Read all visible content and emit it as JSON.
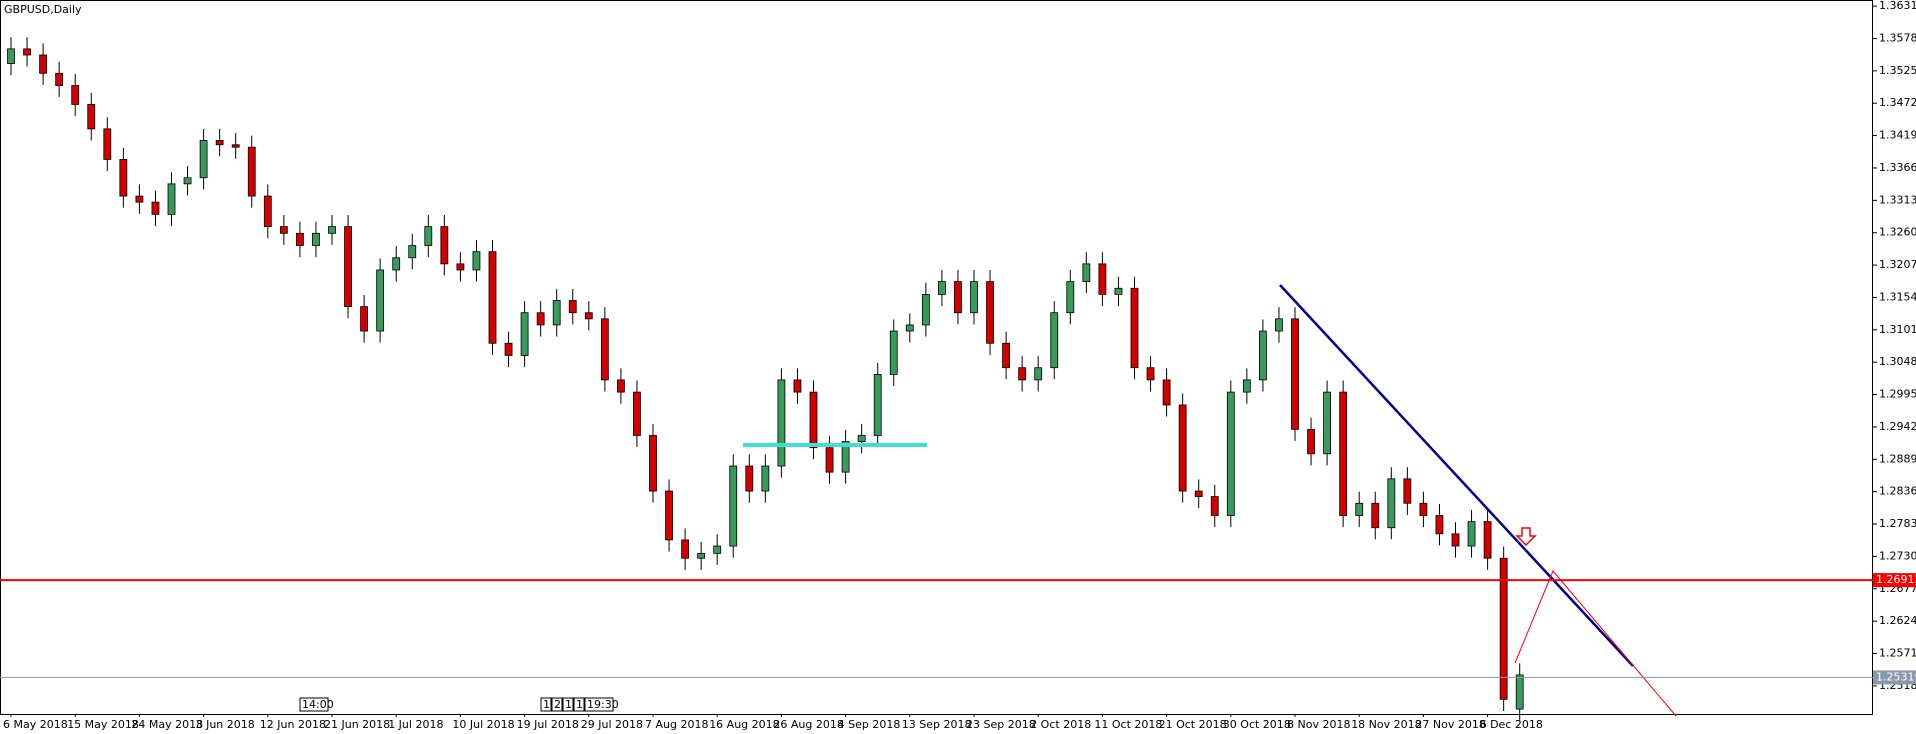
{
  "chart_data": {
    "type": "candlestick",
    "title": "GBPUSD,Daily",
    "categories": [
      "6 May 2018",
      null,
      null,
      null,
      "15 May 2018",
      null,
      null,
      null,
      "24 May 2018",
      null,
      null,
      null,
      "3 Jun 2018",
      null,
      null,
      null,
      "12 Jun 2018",
      null,
      null,
      null,
      "21 Jun 2018",
      null,
      null,
      null,
      "1 Jul 2018",
      null,
      null,
      null,
      "10 Jul 2018",
      null,
      null,
      null,
      "19 Jul 2018",
      null,
      null,
      null,
      "29 Jul 2018",
      null,
      null,
      null,
      "7 Aug 2018",
      null,
      null,
      null,
      "16 Aug 2018",
      null,
      null,
      null,
      "26 Aug 2018",
      null,
      null,
      null,
      "4 Sep 2018",
      null,
      null,
      null,
      "13 Sep 2018",
      null,
      null,
      null,
      "23 Sep 2018",
      null,
      null,
      null,
      "2 Oct 2018",
      null,
      null,
      null,
      "11 Oct 2018",
      null,
      null,
      null,
      "21 Oct 2018",
      null,
      null,
      null,
      "30 Oct 2018",
      null,
      null,
      null,
      "8 Nov 2018",
      null,
      null,
      null,
      "18 Nov 2018",
      null,
      null,
      null,
      "27 Nov 2018",
      null,
      null,
      null,
      "6 Dec 2018",
      null,
      null
    ],
    "open": [
      1.3537,
      1.3561,
      1.3551,
      1.3521,
      1.3501,
      1.347,
      1.343,
      1.338,
      1.332,
      1.331,
      1.329,
      1.334,
      1.335,
      1.3411,
      1.3404,
      1.34,
      1.332,
      1.327,
      1.3259,
      1.3239,
      1.3259,
      1.327,
      1.3139,
      1.3099,
      1.3199,
      1.3219,
      1.3239,
      1.327,
      1.3209,
      1.3199,
      1.3229,
      1.3079,
      1.3059,
      1.3129,
      1.3109,
      1.3149,
      1.3129,
      1.3119,
      1.3019,
      1.2999,
      1.2928,
      1.2837,
      1.2757,
      1.2727,
      1.2735,
      1.2747,
      1.2878,
      1.2837,
      1.2878,
      1.3019,
      1.2999,
      1.2908,
      1.2868,
      1.2918,
      1.2928,
      1.3028,
      1.3099,
      1.3109,
      1.3159,
      1.318,
      1.3129,
      1.318,
      1.3079,
      1.3039,
      1.3019,
      1.3039,
      1.3129,
      1.318,
      1.3209,
      1.3159,
      1.3169,
      1.3039,
      1.3019,
      1.2978,
      1.2837,
      1.2828,
      1.2797,
      1.2999,
      1.3019,
      1.3099,
      1.3119,
      1.2938,
      1.2898,
      1.2999,
      1.2797,
      1.2817,
      1.2777,
      1.2857,
      1.2817,
      1.2797,
      1.2767,
      1.2747,
      1.2787,
      1.2727,
      1.248
    ],
    "high": [
      1.358,
      1.358,
      1.357,
      1.354,
      1.352,
      1.3489,
      1.3449,
      1.3399,
      1.3339,
      1.3329,
      1.3359,
      1.3369,
      1.343,
      1.343,
      1.3423,
      1.3419,
      1.3339,
      1.3289,
      1.3278,
      1.3278,
      1.3289,
      1.3289,
      1.3158,
      1.3218,
      1.3238,
      1.3258,
      1.3289,
      1.3289,
      1.3228,
      1.3248,
      1.3248,
      1.3098,
      1.3148,
      1.3148,
      1.3168,
      1.3168,
      1.3148,
      1.3138,
      1.3038,
      1.3018,
      1.2947,
      1.2856,
      1.2776,
      1.2754,
      1.2766,
      1.2897,
      1.2897,
      1.2897,
      1.3038,
      1.3038,
      1.3018,
      1.2927,
      1.2937,
      1.2947,
      1.3047,
      1.3118,
      1.3128,
      1.3178,
      1.3199,
      1.3199,
      1.3199,
      1.3199,
      1.3098,
      1.3058,
      1.3058,
      1.3148,
      1.3199,
      1.3228,
      1.3228,
      1.3188,
      1.3188,
      1.3058,
      1.3038,
      1.2997,
      1.2856,
      1.2847,
      1.3018,
      1.3038,
      1.3118,
      1.3138,
      1.3138,
      1.2957,
      1.3018,
      1.3018,
      1.2836,
      1.2836,
      1.2876,
      1.2876,
      1.2836,
      1.2816,
      1.2786,
      1.2806,
      1.2806,
      1.2746,
      1.2555
    ],
    "low": [
      1.3518,
      1.3532,
      1.3502,
      1.3482,
      1.3451,
      1.3411,
      1.3361,
      1.3301,
      1.3291,
      1.3271,
      1.3271,
      1.3321,
      1.3331,
      1.3385,
      1.3381,
      1.3301,
      1.3251,
      1.324,
      1.322,
      1.322,
      1.324,
      1.312,
      1.308,
      1.308,
      1.318,
      1.32,
      1.322,
      1.319,
      1.318,
      1.318,
      1.306,
      1.304,
      1.304,
      1.309,
      1.309,
      1.311,
      1.31,
      1.3,
      1.298,
      1.2909,
      1.2818,
      1.2738,
      1.2708,
      1.2708,
      1.2716,
      1.2728,
      1.2818,
      1.2818,
      1.2859,
      1.298,
      1.2889,
      1.2849,
      1.2849,
      1.2899,
      1.2909,
      1.3009,
      1.308,
      1.309,
      1.314,
      1.311,
      1.311,
      1.306,
      1.302,
      1.3,
      1.3,
      1.302,
      1.311,
      1.3161,
      1.314,
      1.314,
      1.302,
      1.3,
      1.2959,
      1.2818,
      1.2809,
      1.2778,
      1.2778,
      1.298,
      1.3,
      1.308,
      1.2919,
      1.2879,
      1.2879,
      1.2778,
      1.2778,
      1.2758,
      1.2758,
      1.2798,
      1.2778,
      1.2748,
      1.2728,
      1.2728,
      1.2708,
      1.2477,
      1.2461
    ],
    "close": [
      1.3561,
      1.3551,
      1.3521,
      1.3501,
      1.347,
      1.343,
      1.338,
      1.332,
      1.331,
      1.329,
      1.334,
      1.335,
      1.3411,
      1.3404,
      1.34,
      1.332,
      1.327,
      1.3259,
      1.3239,
      1.3259,
      1.327,
      1.3139,
      1.3099,
      1.3199,
      1.3219,
      1.3239,
      1.327,
      1.3209,
      1.3199,
      1.3229,
      1.3079,
      1.3059,
      1.3129,
      1.3109,
      1.3149,
      1.3129,
      1.3119,
      1.3019,
      1.2999,
      1.2928,
      1.2837,
      1.2757,
      1.2727,
      1.2735,
      1.2747,
      1.2878,
      1.2837,
      1.2878,
      1.3019,
      1.2999,
      1.2908,
      1.2868,
      1.2918,
      1.2928,
      1.3028,
      1.3099,
      1.3109,
      1.3159,
      1.318,
      1.3129,
      1.318,
      1.3079,
      1.3039,
      1.3019,
      1.3039,
      1.3129,
      1.318,
      1.3209,
      1.3159,
      1.3169,
      1.3039,
      1.3019,
      1.2978,
      1.2837,
      1.2828,
      1.2797,
      1.2999,
      1.3019,
      1.3099,
      1.3119,
      1.2938,
      1.2898,
      1.2999,
      1.2797,
      1.2817,
      1.2777,
      1.2857,
      1.2817,
      1.2797,
      1.2767,
      1.2747,
      1.2787,
      1.2727,
      1.2496,
      1.2536
    ],
    "up_color": "#3a9a5c",
    "down_color": "#d40000",
    "ylim": [
      1.2472,
      1.3641
    ],
    "yticks": [
      {
        "value": 1.3631,
        "label": "1.36310"
      },
      {
        "value": 1.3578,
        "label": "1.35780"
      },
      {
        "value": 1.3525,
        "label": "1.35250"
      },
      {
        "value": 1.3472,
        "label": "1.34720"
      },
      {
        "value": 1.3419,
        "label": "1.34190"
      },
      {
        "value": 1.3366,
        "label": "1.33660"
      },
      {
        "value": 1.3313,
        "label": "1.33130"
      },
      {
        "value": 1.326,
        "label": "1.32600"
      },
      {
        "value": 1.3207,
        "label": "1.32070"
      },
      {
        "value": 1.3154,
        "label": "1.31540"
      },
      {
        "value": 1.3101,
        "label": "1.31010"
      },
      {
        "value": 1.3048,
        "label": "1.30480"
      },
      {
        "value": 1.2995,
        "label": "1.29950"
      },
      {
        "value": 1.2942,
        "label": "1.29420"
      },
      {
        "value": 1.2889,
        "label": "1.28890"
      },
      {
        "value": 1.2836,
        "label": "1.28360"
      },
      {
        "value": 1.2783,
        "label": "1.27830"
      },
      {
        "value": 1.273,
        "label": "1.27300"
      },
      {
        "value": 1.2677,
        "label": "1.26770"
      },
      {
        "value": 1.2624,
        "label": "1.26240"
      },
      {
        "value": 1.2571,
        "label": "1.25710"
      },
      {
        "value": 1.2518,
        "label": "1.25180"
      }
    ],
    "grid": false,
    "levels": [
      {
        "value": 1.26912,
        "color": "#ff0000"
      },
      {
        "value": 1.25319,
        "color": "#8899aa"
      }
    ],
    "time_markers": [
      "14:00",
      "1",
      "2",
      "1",
      "1",
      "19:30"
    ]
  }
}
